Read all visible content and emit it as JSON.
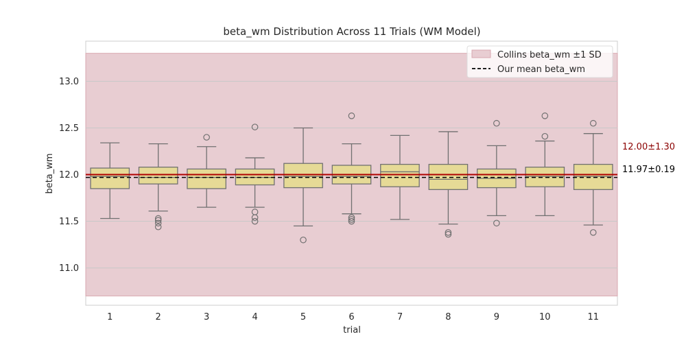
{
  "chart_data": {
    "type": "box",
    "title": "beta_wm Distribution Across 11 Trials (WM Model)",
    "xlabel": "trial",
    "ylabel": "beta_wm",
    "categories": [
      "1",
      "2",
      "3",
      "4",
      "5",
      "6",
      "7",
      "8",
      "9",
      "10",
      "11"
    ],
    "ylim": [
      10.6,
      13.43
    ],
    "yticks": [
      "11.0",
      "11.5",
      "12.0",
      "12.5",
      "13.0"
    ],
    "grid": true,
    "legend_position": "upper-right",
    "boxes": [
      {
        "whisker_low": 11.53,
        "q1": 11.85,
        "median": 11.98,
        "q3": 12.07,
        "whisker_high": 12.34,
        "outliers": []
      },
      {
        "whisker_low": 11.61,
        "q1": 11.9,
        "median": 11.97,
        "q3": 12.08,
        "whisker_high": 12.33,
        "outliers": [
          11.53,
          11.51,
          11.48,
          11.44
        ]
      },
      {
        "whisker_low": 11.65,
        "q1": 11.85,
        "median": 11.97,
        "q3": 12.06,
        "whisker_high": 12.3,
        "outliers": [
          12.4
        ]
      },
      {
        "whisker_low": 11.65,
        "q1": 11.89,
        "median": 11.97,
        "q3": 12.06,
        "whisker_high": 12.18,
        "outliers": [
          11.6,
          11.54,
          11.5,
          12.51
        ]
      },
      {
        "whisker_low": 11.45,
        "q1": 11.86,
        "median": 11.98,
        "q3": 12.12,
        "whisker_high": 12.5,
        "outliers": [
          11.3
        ]
      },
      {
        "whisker_low": 11.58,
        "q1": 11.9,
        "median": 11.98,
        "q3": 12.1,
        "whisker_high": 12.33,
        "outliers": [
          11.54,
          11.52,
          11.5,
          12.63
        ]
      },
      {
        "whisker_low": 11.52,
        "q1": 11.87,
        "median": 12.03,
        "q3": 12.11,
        "whisker_high": 12.42,
        "outliers": []
      },
      {
        "whisker_low": 11.47,
        "q1": 11.84,
        "median": 11.95,
        "q3": 12.11,
        "whisker_high": 12.46,
        "outliers": [
          11.38,
          11.36
        ]
      },
      {
        "whisker_low": 11.56,
        "q1": 11.86,
        "median": 11.96,
        "q3": 12.06,
        "whisker_high": 12.31,
        "outliers": [
          11.48,
          12.55
        ]
      },
      {
        "whisker_low": 11.56,
        "q1": 11.87,
        "median": 11.98,
        "q3": 12.08,
        "whisker_high": 12.36,
        "outliers": [
          12.41,
          12.63
        ]
      },
      {
        "whisker_low": 11.46,
        "q1": 11.84,
        "median": 11.98,
        "q3": 12.11,
        "whisker_high": 12.44,
        "outliers": [
          11.38,
          12.55
        ]
      }
    ],
    "reference_band": {
      "name": "Collins beta_wm ±1 SD",
      "low": 10.7,
      "high": 13.3,
      "color": "#c98b97"
    },
    "reference_line": {
      "value": 12.0,
      "color": "#b00000"
    },
    "mean_line": {
      "name": "Our mean beta_wm",
      "value": 11.97,
      "color": "#000000"
    },
    "annotations": {
      "collins": {
        "text": "12.00±1.30",
        "color": "#8b0000"
      },
      "ours": {
        "text": "11.97±0.19",
        "color": "#000000"
      }
    },
    "colors": {
      "box_fill": "#e6da96",
      "box_edge": "#707070",
      "grid": "#c8c8c8",
      "band_fill": "#e8cdd2"
    }
  }
}
